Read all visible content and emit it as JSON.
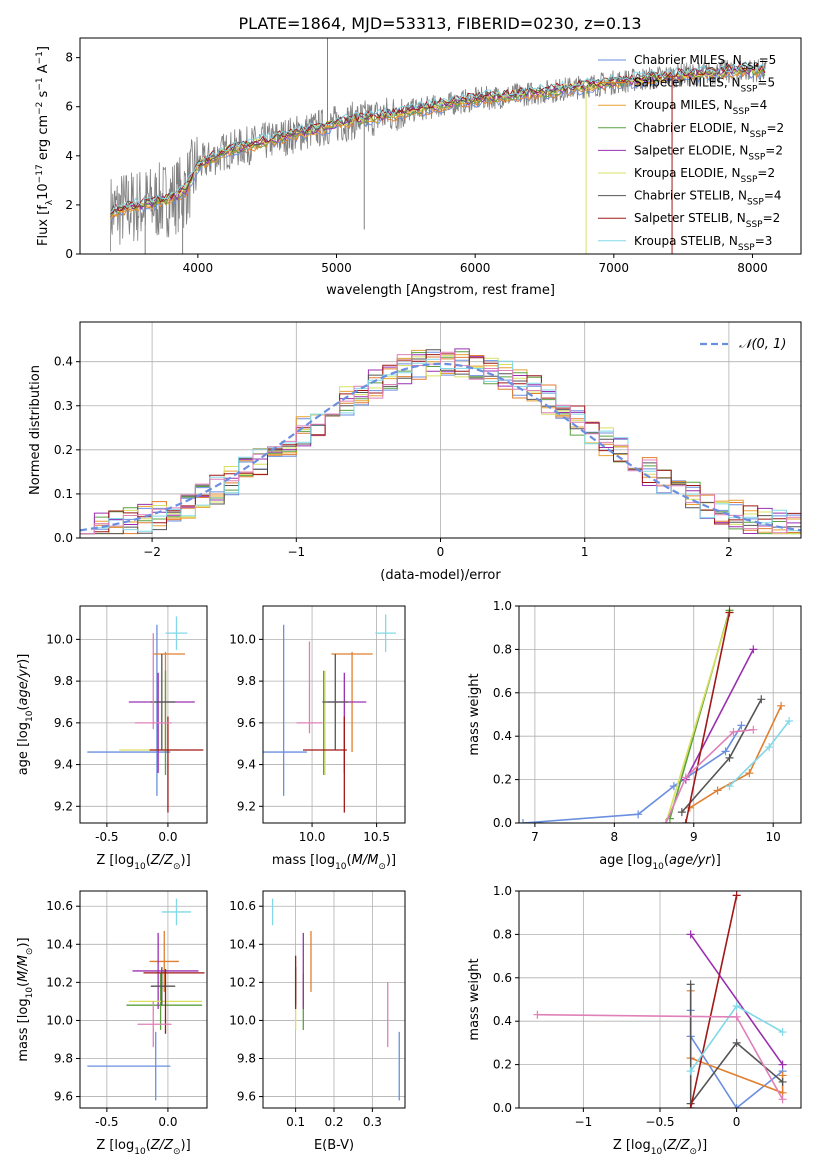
{
  "figure_title": "PLATE=1864, MJD=53313, FIBERID=0230, z=0.13",
  "colors": {
    "Chabrier MILES": "#6a8fe0",
    "Salpeter MILES": "#e07f30",
    "Kroupa MILES": "#e8a030",
    "Chabrier ELODIE": "#5aa040",
    "Salpeter ELODIE": "#9a30b0",
    "Kroupa ELODIE": "#d8e060",
    "Chabrier STELIB": "#555555",
    "Salpeter STELIB": "#a01818",
    "Kroupa STELIB": "#80d8e8",
    "data": "#808080",
    "pink": "#e080b8",
    "gaussian": "#6a8fe0"
  },
  "chart_data": [
    {
      "id": "spectrum",
      "type": "line",
      "xlabel": "wavelength [Angstrom, rest frame]",
      "ylabel": "Flux [f",
      "xlim": [
        3150,
        8350
      ],
      "ylim": [
        0,
        8.8
      ],
      "xticks": [
        4000,
        5000,
        6000,
        7000,
        8000
      ],
      "yticks": [
        0,
        2,
        4,
        6,
        8
      ],
      "continuum": {
        "x": [
          3370,
          3500,
          3700,
          3900,
          4000,
          4200,
          4500,
          5000,
          5500,
          6000,
          6500,
          7000,
          7500,
          8000,
          8100
        ],
        "y": [
          1.7,
          1.9,
          2.1,
          2.5,
          3.6,
          4.2,
          4.6,
          5.3,
          5.8,
          6.3,
          6.6,
          7.0,
          7.3,
          7.5,
          7.4
        ]
      },
      "legend": [
        {
          "label": "Chabrier MILES, N",
          "n": 5
        },
        {
          "label": "Salpeter MILES, N",
          "n": 5
        },
        {
          "label": "Kroupa MILES, N",
          "n": 4
        },
        {
          "label": "Chabrier ELODIE, N",
          "n": 2
        },
        {
          "label": "Salpeter ELODIE, N",
          "n": 2
        },
        {
          "label": "Kroupa ELODIE, N",
          "n": 2
        },
        {
          "label": "Chabrier STELIB, N",
          "n": 4
        },
        {
          "label": "Salpeter STELIB, N",
          "n": 2
        },
        {
          "label": "Kroupa STELIB, N",
          "n": 3
        }
      ]
    },
    {
      "id": "residuals",
      "type": "line",
      "xlabel": "(data-model)/error",
      "ylabel": "Normed distribution",
      "xlim": [
        -2.5,
        2.5
      ],
      "ylim": [
        0,
        0.49
      ],
      "xticks": [
        -2,
        -1,
        0,
        1,
        2
      ],
      "yticks": [
        0.0,
        0.1,
        0.2,
        0.3,
        0.4
      ],
      "legend_label": "𝒩(0, 1)",
      "gaussian": {
        "mu": 0,
        "sigma": 1
      }
    },
    {
      "id": "age_vs_Z",
      "type": "scatter",
      "xlabel": "Z [log",
      "ylabel": "age  [log",
      "xlim": [
        -0.72,
        0.32
      ],
      "ylim": [
        9.12,
        10.16
      ],
      "xticks": [
        -0.5,
        0.0
      ],
      "yticks": [
        9.2,
        9.4,
        9.6,
        9.8,
        10.0
      ],
      "points": [
        {
          "s": "Chabrier MILES",
          "x": -0.32,
          "xe": 0.34,
          "y": 9.46,
          "ye": 0.0
        },
        {
          "s": "Chabrier MILES",
          "x": -0.09,
          "xe": 0.0,
          "y": 9.66,
          "ye": 0.41
        },
        {
          "s": "Salpeter MILES",
          "x": 0.01,
          "xe": 0.13,
          "y": 9.93,
          "ye": 0.0
        },
        {
          "s": "Salpeter MILES",
          "x": -0.02,
          "xe": 0.0,
          "y": 9.7,
          "ye": 0.24
        },
        {
          "s": "Chabrier ELODIE",
          "x": -0.02,
          "xe": 0.0,
          "y": 9.6,
          "ye": 0.25
        },
        {
          "s": "Salpeter ELODIE",
          "x": -0.05,
          "xe": 0.27,
          "y": 9.7,
          "ye": 0.0
        },
        {
          "s": "Salpeter ELODIE",
          "x": -0.08,
          "xe": 0.0,
          "y": 9.6,
          "ye": 0.24
        },
        {
          "s": "Kroupa ELODIE",
          "x": -0.15,
          "xe": 0.25,
          "y": 9.47,
          "ye": 0.0
        },
        {
          "s": "Chabrier STELIB",
          "x": -0.04,
          "xe": 0.1,
          "y": 9.7,
          "ye": 0.0
        },
        {
          "s": "Chabrier STELIB",
          "x": -0.05,
          "xe": 0.0,
          "y": 9.7,
          "ye": 0.23
        },
        {
          "s": "Salpeter STELIB",
          "x": 0.0,
          "xe": 0.0,
          "y": 9.4,
          "ye": 0.23
        },
        {
          "s": "Salpeter STELIB",
          "x": 0.07,
          "xe": 0.22,
          "y": 9.47,
          "ye": 0.0
        },
        {
          "s": "Kroupa STELIB",
          "x": 0.07,
          "xe": 0.09,
          "y": 10.03,
          "ye": 0.08
        },
        {
          "s": "pink",
          "x": -0.12,
          "xe": 0.15,
          "y": 9.6,
          "ye": 0.0
        },
        {
          "s": "pink",
          "x": -0.12,
          "xe": 0.0,
          "y": 9.8,
          "ye": 0.23
        }
      ]
    },
    {
      "id": "age_vs_mass",
      "type": "scatter",
      "xlabel": "mass [log",
      "ylabel": "",
      "xlim": [
        9.62,
        10.72
      ],
      "ylim": [
        9.12,
        10.16
      ],
      "xticks": [
        10.0,
        10.5
      ],
      "yticks": [
        9.2,
        9.4,
        9.6,
        9.8,
        10.0
      ],
      "points": [
        {
          "s": "Chabrier MILES",
          "x": 9.78,
          "xe": 0.18,
          "y": 9.46,
          "ye": 0.0
        },
        {
          "s": "Chabrier MILES",
          "x": 9.78,
          "xe": 0.0,
          "y": 9.66,
          "ye": 0.41
        },
        {
          "s": "Salpeter MILES",
          "x": 10.31,
          "xe": 0.16,
          "y": 9.93,
          "ye": 0.0
        },
        {
          "s": "Salpeter MILES",
          "x": 10.31,
          "xe": 0.0,
          "y": 9.7,
          "ye": 0.24
        },
        {
          "s": "Chabrier ELODIE",
          "x": 10.09,
          "xe": 0.0,
          "y": 9.6,
          "ye": 0.25
        },
        {
          "s": "Salpeter ELODIE",
          "x": 10.27,
          "xe": 0.15,
          "y": 9.7,
          "ye": 0.0
        },
        {
          "s": "Salpeter ELODIE",
          "x": 10.25,
          "xe": 0.0,
          "y": 9.6,
          "ye": 0.24
        },
        {
          "s": "Kroupa ELODIE",
          "x": 10.1,
          "xe": 0.0,
          "y": 9.6,
          "ye": 0.25
        },
        {
          "s": "Chabrier STELIB",
          "x": 10.18,
          "xe": 0.0,
          "y": 9.7,
          "ye": 0.23
        },
        {
          "s": "Chabrier STELIB",
          "x": 10.18,
          "xe": 0.1,
          "y": 9.7,
          "ye": 0.0
        },
        {
          "s": "Salpeter STELIB",
          "x": 10.25,
          "xe": 0.0,
          "y": 9.4,
          "ye": 0.23
        },
        {
          "s": "Salpeter STELIB",
          "x": 10.1,
          "xe": 0.17,
          "y": 9.47,
          "ye": 0.0
        },
        {
          "s": "Kroupa STELIB",
          "x": 10.57,
          "xe": 0.08,
          "y": 10.03,
          "ye": 0.09
        },
        {
          "s": "pink",
          "x": 9.98,
          "xe": 0.1,
          "y": 9.6,
          "ye": 0.0
        },
        {
          "s": "pink",
          "x": 9.98,
          "xe": 0.0,
          "y": 9.77,
          "ye": 0.22
        }
      ]
    },
    {
      "id": "weight_vs_age",
      "type": "line",
      "xlabel": "age  [log",
      "ylabel": "mass weight",
      "xlim": [
        6.8,
        10.35
      ],
      "ylim": [
        0,
        1.0
      ],
      "xticks": [
        7,
        8,
        9,
        10
      ],
      "yticks": [
        0.0,
        0.2,
        0.4,
        0.6,
        0.8,
        1.0
      ],
      "series": [
        {
          "s": "Chabrier MILES",
          "x": [
            6.85,
            8.3,
            8.75,
            9.4,
            9.6
          ],
          "y": [
            0.0,
            0.04,
            0.17,
            0.33,
            0.45
          ]
        },
        {
          "s": "Salpeter MILES",
          "x": [
            8.95,
            9.3,
            9.7,
            10.1
          ],
          "y": [
            0.07,
            0.15,
            0.23,
            0.54
          ]
        },
        {
          "s": "Chabrier ELODIE",
          "x": [
            8.7,
            9.45
          ],
          "y": [
            0.02,
            0.98
          ]
        },
        {
          "s": "Salpeter ELODIE",
          "x": [
            8.9,
            9.75
          ],
          "y": [
            0.2,
            0.8
          ]
        },
        {
          "s": "Kroupa ELODIE",
          "x": [
            8.65,
            9.45
          ],
          "y": [
            0.0,
            0.97
          ]
        },
        {
          "s": "Chabrier STELIB",
          "x": [
            8.85,
            9.45,
            9.85
          ],
          "y": [
            0.05,
            0.3,
            0.57
          ]
        },
        {
          "s": "Salpeter STELIB",
          "x": [
            8.9,
            9.45
          ],
          "y": [
            0.0,
            0.97
          ]
        },
        {
          "s": "Kroupa STELIB",
          "x": [
            9.45,
            9.95,
            10.2
          ],
          "y": [
            0.17,
            0.35,
            0.47
          ]
        },
        {
          "s": "pink",
          "x": [
            8.65,
            8.9,
            9.5,
            9.75
          ],
          "y": [
            0.0,
            0.21,
            0.42,
            0.43
          ]
        }
      ]
    },
    {
      "id": "mass_vs_Z",
      "type": "scatter",
      "xlabel": "Z [log",
      "ylabel": "mass [log",
      "xlim": [
        -0.72,
        0.32
      ],
      "ylim": [
        9.54,
        10.68
      ],
      "xticks": [
        -0.5,
        0.0
      ],
      "yticks": [
        9.6,
        9.8,
        10.0,
        10.2,
        10.4,
        10.6
      ],
      "points": [
        {
          "s": "Chabrier MILES",
          "x": -0.32,
          "xe": 0.34,
          "y": 9.76,
          "ye": 0.0
        },
        {
          "s": "Chabrier MILES",
          "x": -0.1,
          "xe": 0.0,
          "y": 9.76,
          "ye": 0.18
        },
        {
          "s": "Salpeter MILES",
          "x": -0.03,
          "xe": 0.12,
          "y": 10.31,
          "ye": 0.0
        },
        {
          "s": "Salpeter MILES",
          "x": -0.03,
          "xe": 0.0,
          "y": 10.31,
          "ye": 0.16
        },
        {
          "s": "Chabrier ELODIE",
          "x": -0.03,
          "xe": 0.31,
          "y": 10.08,
          "ye": 0.0
        },
        {
          "s": "Chabrier ELODIE",
          "x": -0.06,
          "xe": 0.0,
          "y": 10.1,
          "ye": 0.15
        },
        {
          "s": "Salpeter ELODIE",
          "x": -0.02,
          "xe": 0.27,
          "y": 10.26,
          "ye": 0.0
        },
        {
          "s": "Salpeter ELODIE",
          "x": -0.08,
          "xe": 0.0,
          "y": 10.26,
          "ye": 0.2
        },
        {
          "s": "Kroupa ELODIE",
          "x": -0.02,
          "xe": 0.3,
          "y": 10.1,
          "ye": 0.0
        },
        {
          "s": "Chabrier STELIB",
          "x": -0.04,
          "xe": 0.1,
          "y": 10.18,
          "ye": 0.0
        },
        {
          "s": "Chabrier STELIB",
          "x": -0.05,
          "xe": 0.0,
          "y": 10.18,
          "ye": 0.1
        },
        {
          "s": "Salpeter STELIB",
          "x": 0.05,
          "xe": 0.25,
          "y": 10.25,
          "ye": 0.0
        },
        {
          "s": "Salpeter STELIB",
          "x": -0.02,
          "xe": 0.0,
          "y": 10.1,
          "ye": 0.17
        },
        {
          "s": "Kroupa STELIB",
          "x": 0.07,
          "xe": 0.12,
          "y": 10.57,
          "ye": 0.07
        },
        {
          "s": "pink",
          "x": -0.11,
          "xe": 0.14,
          "y": 9.98,
          "ye": 0.0
        },
        {
          "s": "pink",
          "x": -0.12,
          "xe": 0.0,
          "y": 9.98,
          "ye": 0.12
        }
      ]
    },
    {
      "id": "mass_vs_ebv",
      "type": "scatter",
      "xlabel": "E(B-V)",
      "ylabel": "",
      "xlim": [
        0.015,
        0.385
      ],
      "ylim": [
        9.54,
        10.68
      ],
      "xticks": [
        0.1,
        0.2,
        0.3
      ],
      "yticks": [
        9.6,
        9.8,
        10.0,
        10.2,
        10.4,
        10.6
      ],
      "points": [
        {
          "s": "Chabrier MILES",
          "x": 0.37,
          "xe": 0.0,
          "y": 9.76,
          "ye": 0.18
        },
        {
          "s": "Salpeter MILES",
          "x": 0.14,
          "xe": 0.0,
          "y": 10.31,
          "ye": 0.16
        },
        {
          "s": "Chabrier ELODIE",
          "x": 0.12,
          "xe": 0.0,
          "y": 10.1,
          "ye": 0.15
        },
        {
          "s": "Salpeter ELODIE",
          "x": 0.12,
          "xe": 0.0,
          "y": 10.26,
          "ye": 0.2
        },
        {
          "s": "Kroupa ELODIE",
          "x": 0.1,
          "xe": 0.0,
          "y": 10.1,
          "ye": 0.15
        },
        {
          "s": "Chabrier STELIB",
          "x": 0.1,
          "xe": 0.0,
          "y": 10.18,
          "ye": 0.1
        },
        {
          "s": "Salpeter STELIB",
          "x": 0.1,
          "xe": 0.0,
          "y": 10.2,
          "ye": 0.14
        },
        {
          "s": "Kroupa STELIB",
          "x": 0.04,
          "xe": 0.0,
          "y": 10.57,
          "ye": 0.07
        },
        {
          "s": "pink",
          "x": 0.34,
          "xe": 0.0,
          "y": 10.03,
          "ye": 0.17
        }
      ]
    },
    {
      "id": "weight_vs_Z",
      "type": "line",
      "xlabel": "Z [log",
      "ylabel": "mass weight",
      "xlim": [
        -1.42,
        0.42
      ],
      "ylim": [
        0,
        1.0
      ],
      "xticks": [
        -1.0,
        -0.5,
        0.0
      ],
      "yticks": [
        0.0,
        0.2,
        0.4,
        0.6,
        0.8,
        1.0
      ],
      "series": [
        {
          "s": "Chabrier MILES",
          "x": [
            -0.3,
            -0.3,
            0.0,
            0.3
          ],
          "y": [
            0.45,
            0.33,
            0.0,
            0.17
          ]
        },
        {
          "s": "Salpeter MILES",
          "x": [
            -0.3,
            -0.3,
            0.3,
            0.3
          ],
          "y": [
            0.54,
            0.23,
            0.07,
            0.15
          ]
        },
        {
          "s": "Salpeter ELODIE",
          "x": [
            -0.3,
            0.3
          ],
          "y": [
            0.8,
            0.2
          ]
        },
        {
          "s": "Chabrier STELIB",
          "x": [
            -0.3,
            -0.3,
            0.0,
            0.3
          ],
          "y": [
            0.57,
            0.02,
            0.3,
            0.12
          ]
        },
        {
          "s": "Salpeter STELIB",
          "x": [
            -0.3,
            0.0
          ],
          "y": [
            0.0,
            0.98
          ]
        },
        {
          "s": "Kroupa STELIB",
          "x": [
            -0.3,
            0.0,
            0.3
          ],
          "y": [
            0.17,
            0.47,
            0.35
          ]
        },
        {
          "s": "pink",
          "x": [
            -1.3,
            0.0,
            0.3
          ],
          "y": [
            0.43,
            0.42,
            0.04
          ]
        }
      ]
    }
  ]
}
